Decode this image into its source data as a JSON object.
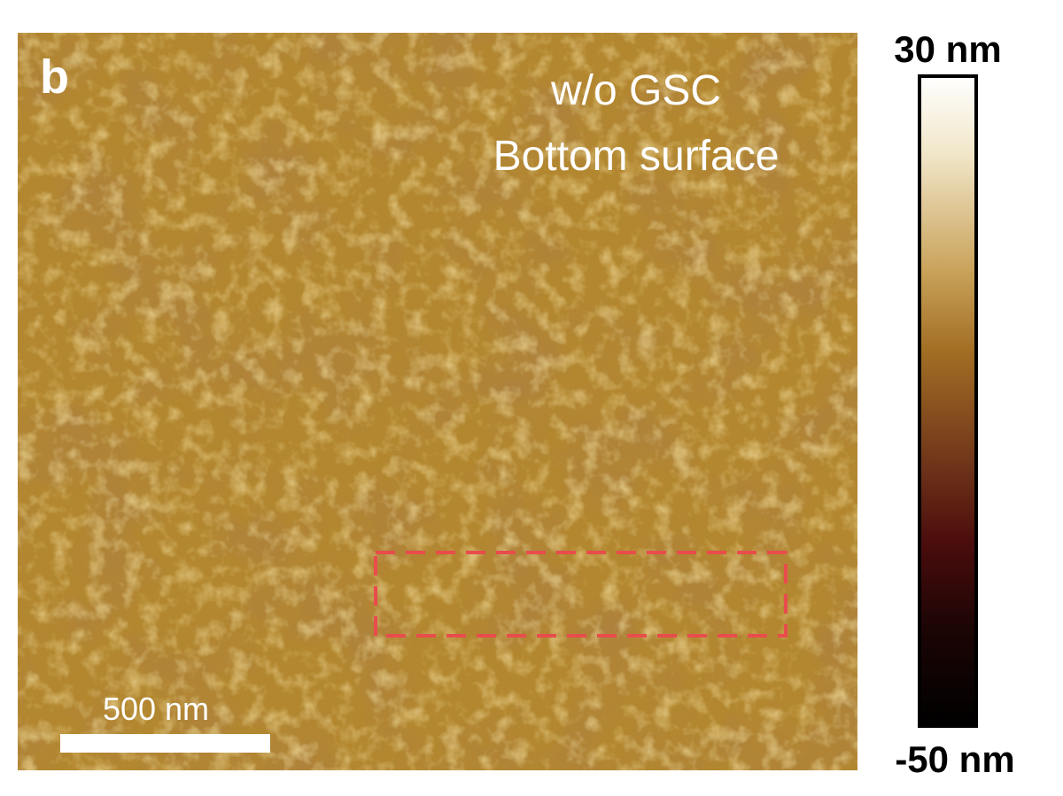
{
  "panel_label": "b",
  "annotation": {
    "lines": [
      "w/o GSC",
      "Bottom surface"
    ]
  },
  "scale_bar": {
    "label": "500 nm"
  },
  "colorbar": {
    "max_label": "30 nm",
    "min_label": "-50 nm"
  }
}
